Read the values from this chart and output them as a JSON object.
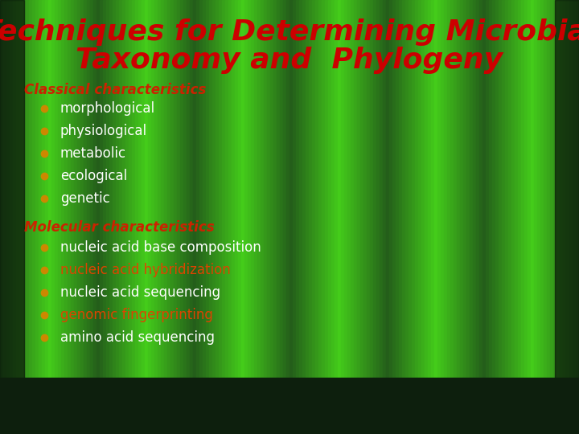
{
  "title_line1": "Techniques for Determining Microbial",
  "title_line2": "Taxonomy and  Phylogeny",
  "title_color": "#cc0000",
  "title_fontsize": 26,
  "bg_color_dark": "#1a3a1a",
  "bg_color_mid": "#2a6a2a",
  "section1_label": "Classical characteristics",
  "section1_color": "#cc2200",
  "section1_items": [
    "morphological",
    "physiological",
    "metabolic",
    "ecological",
    "genetic"
  ],
  "section1_item_color": "#ffffff",
  "section1_bullet_color": "#cc8800",
  "section2_label": "Molecular characteristics",
  "section2_color": "#cc2200",
  "section2_items": [
    [
      "nucleic acid base composition",
      "#ffffff"
    ],
    [
      "nucleic acid hybridization",
      "#dd4400"
    ],
    [
      "nucleic acid sequencing",
      "#ffffff"
    ],
    [
      "genomic fingerprinting",
      "#dd4400"
    ],
    [
      "amino acid sequencing",
      "#ffffff"
    ]
  ],
  "section2_bullet_color": "#cc8800",
  "item_fontsize": 12,
  "section_fontsize": 12,
  "num_curtain_panels": 6,
  "curtain_light": "#3ab53a",
  "curtain_dark": "#1a5a1a",
  "curtain_highlight": "#55dd55",
  "floor_color": "#0d1f0d"
}
